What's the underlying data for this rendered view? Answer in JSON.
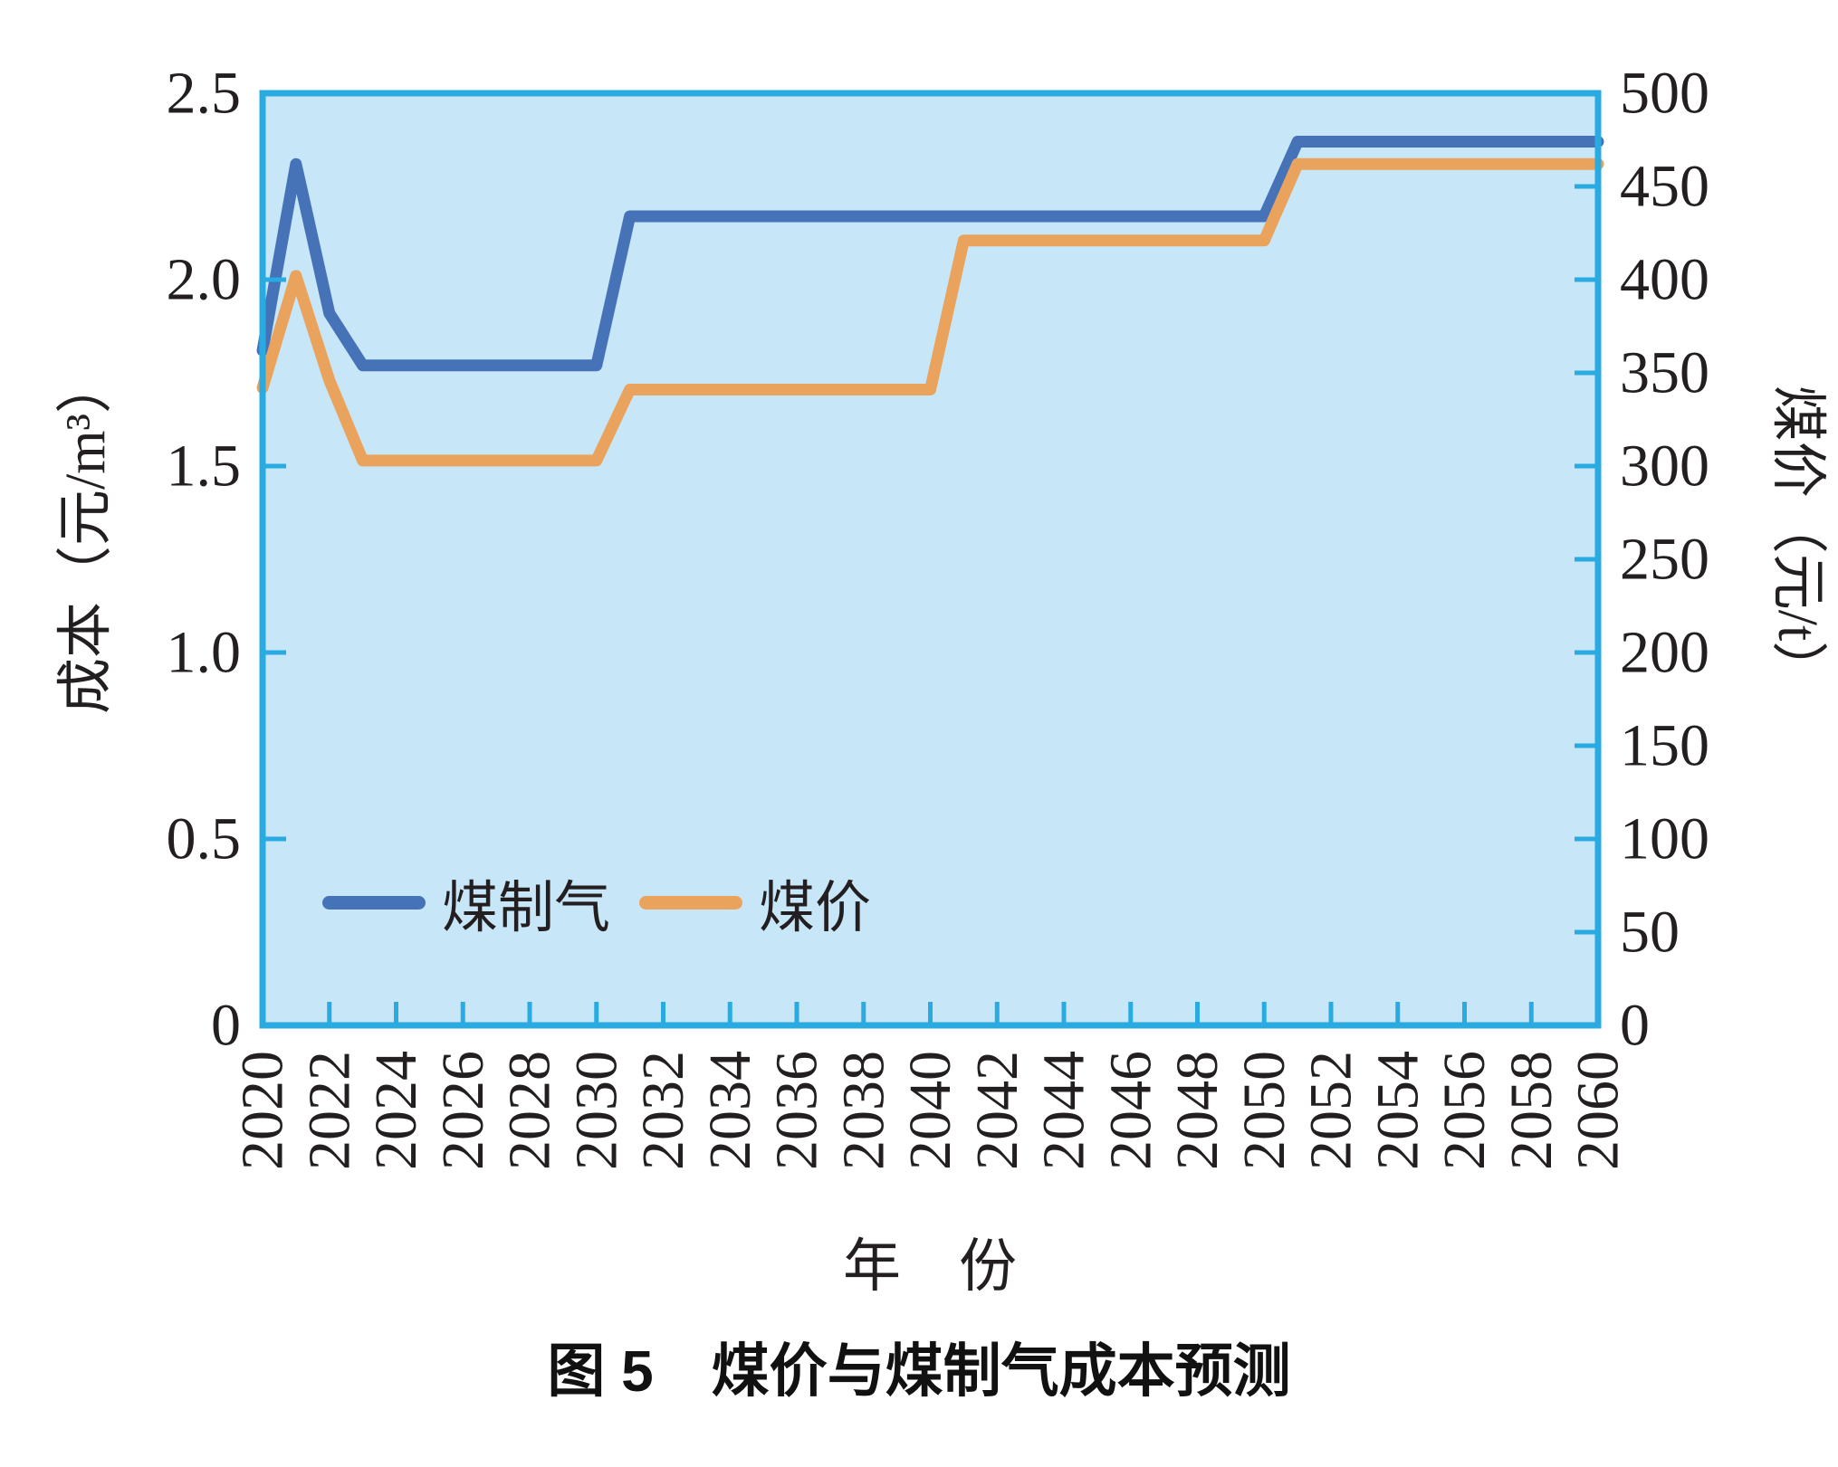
{
  "figure": {
    "caption": "图 5　煤价与煤制气成本预测"
  },
  "chart_data": {
    "type": "line",
    "title": "图 5　煤价与煤制气成本预测",
    "plot_background": "#c7e6f8",
    "axis_color": "#29abe2",
    "grid": false,
    "legend_position": "inside-bottom-left",
    "x_axis": {
      "label": "年　份",
      "range": [
        2020,
        2060
      ],
      "tick_step": 2,
      "tick_labels": [
        "2020",
        "2022",
        "2024",
        "2026",
        "2028",
        "2030",
        "2032",
        "2034",
        "2036",
        "2038",
        "2040",
        "2042",
        "2044",
        "2046",
        "2048",
        "2050",
        "2052",
        "2054",
        "2056",
        "2058",
        "2060"
      ]
    },
    "left_axis": {
      "label": "成本（元/m³）",
      "range": [
        0,
        2.5
      ],
      "tick_values": [
        0,
        0.5,
        1.0,
        1.5,
        2.0,
        2.5
      ],
      "tick_labels": [
        "0",
        "0.5",
        "1.0",
        "1.5",
        "2.0",
        "2.5"
      ]
    },
    "right_axis": {
      "label": "煤价（元/t）",
      "range": [
        0,
        500
      ],
      "tick_values": [
        0,
        50,
        100,
        150,
        200,
        250,
        300,
        350,
        400,
        450,
        500
      ],
      "tick_labels": [
        "0",
        "50",
        "100",
        "150",
        "200",
        "250",
        "300",
        "350",
        "400",
        "450",
        "500"
      ]
    },
    "x": [
      2020,
      2021,
      2022,
      2023,
      2024,
      2025,
      2026,
      2027,
      2028,
      2029,
      2030,
      2031,
      2032,
      2033,
      2034,
      2035,
      2036,
      2037,
      2038,
      2039,
      2040,
      2041,
      2042,
      2043,
      2044,
      2045,
      2046,
      2047,
      2048,
      2049,
      2050,
      2051,
      2052,
      2053,
      2054,
      2055,
      2056,
      2057,
      2058,
      2059,
      2060
    ],
    "series": [
      {
        "name": "煤制气",
        "axis": "left",
        "unit": "元/m³",
        "color": "#4673b8",
        "values": [
          1.81,
          2.31,
          1.91,
          1.77,
          1.77,
          1.77,
          1.77,
          1.77,
          1.77,
          1.77,
          1.77,
          2.17,
          2.17,
          2.17,
          2.17,
          2.17,
          2.17,
          2.17,
          2.17,
          2.17,
          2.17,
          2.17,
          2.17,
          2.17,
          2.17,
          2.17,
          2.17,
          2.17,
          2.17,
          2.17,
          2.17,
          2.37,
          2.37,
          2.37,
          2.37,
          2.37,
          2.37,
          2.37,
          2.37,
          2.37,
          2.37
        ]
      },
      {
        "name": "煤价",
        "axis": "right",
        "unit": "元/t",
        "color": "#eaa35c",
        "values": [
          342,
          402,
          346,
          303,
          303,
          303,
          303,
          303,
          303,
          303,
          303,
          341,
          341,
          341,
          341,
          341,
          341,
          341,
          341,
          341,
          341,
          421,
          421,
          421,
          421,
          421,
          421,
          421,
          421,
          421,
          421,
          462,
          462,
          462,
          462,
          462,
          462,
          462,
          462,
          462,
          462
        ]
      }
    ]
  }
}
